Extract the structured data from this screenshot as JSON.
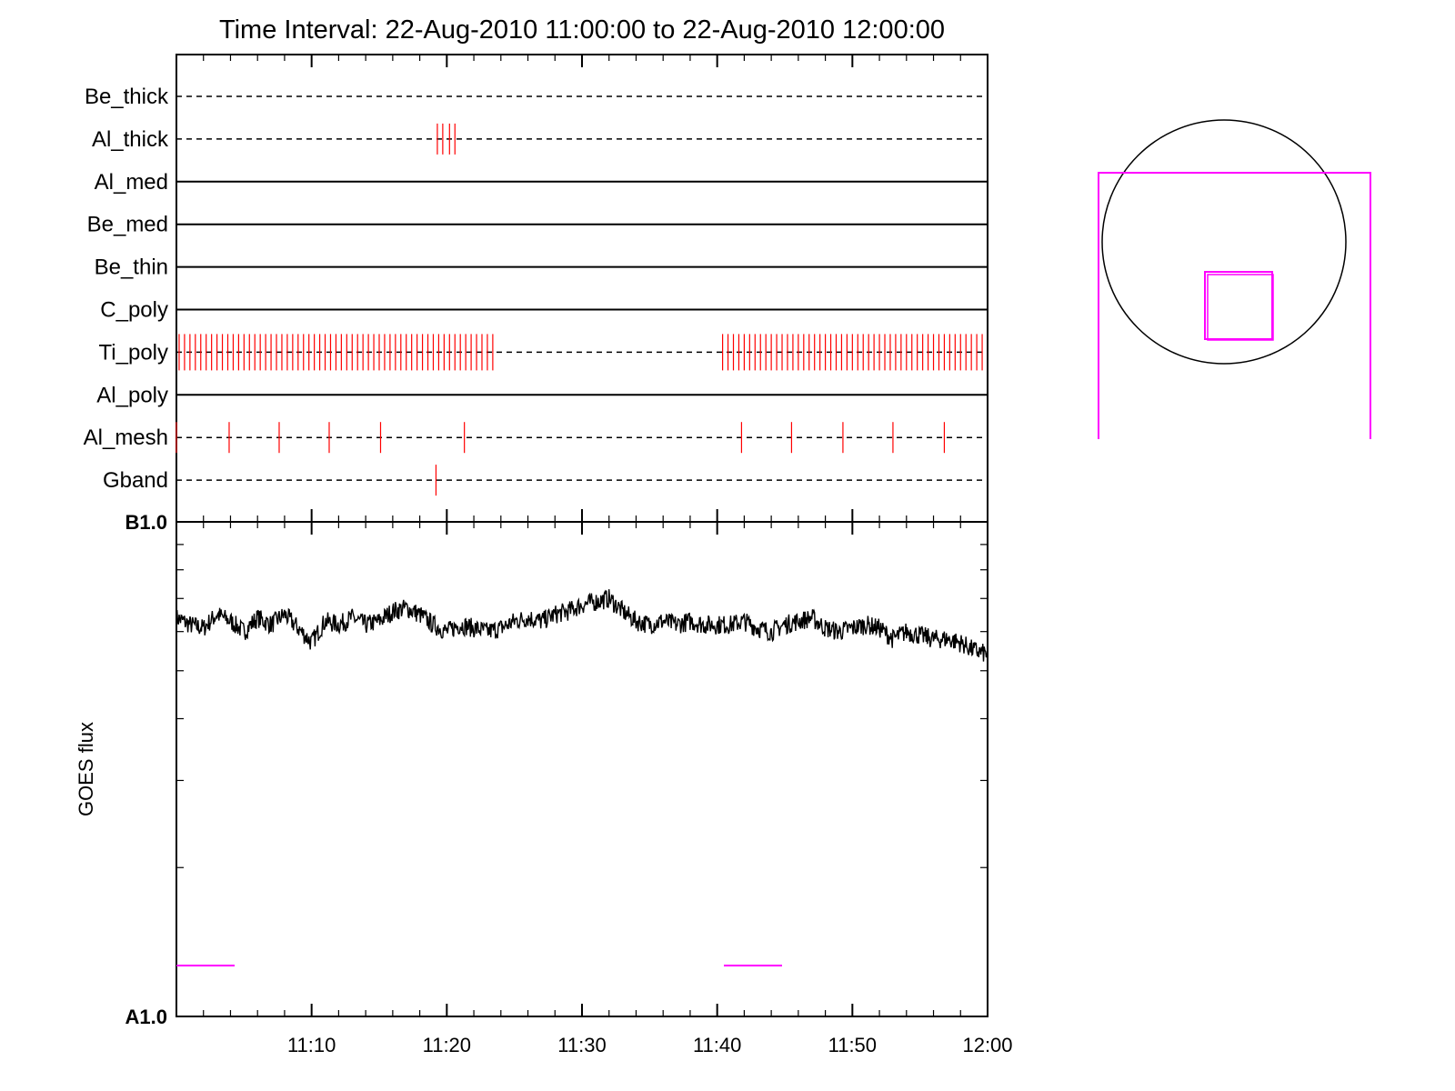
{
  "title": "Time Interval: 22-Aug-2010 11:00:00 to 22-Aug-2010 12:00:00",
  "colors": {
    "event_ticks": "#ff0000",
    "goes_curve": "#000000",
    "fov_overlay": "#ff00ff",
    "frame": "#000000"
  },
  "chart_data": [
    {
      "type": "scatter",
      "name": "filter-timeline",
      "x_unit": "minutes after 11:00",
      "xlim": [
        0,
        60
      ],
      "rows": [
        {
          "label": "Be_thick",
          "style": "dashed",
          "events": []
        },
        {
          "label": "Al_thick",
          "style": "dashed",
          "events": [
            19.3,
            19.7,
            20.2,
            20.6
          ]
        },
        {
          "label": "Al_med",
          "style": "solid",
          "events": []
        },
        {
          "label": "Be_med",
          "style": "solid",
          "events": []
        },
        {
          "label": "Be_thin",
          "style": "solid",
          "events": []
        },
        {
          "label": "C_poly",
          "style": "solid",
          "events": []
        },
        {
          "label": "Ti_poly",
          "style": "dashed",
          "events": [
            0.2,
            0.6,
            1.0,
            1.4,
            1.8,
            2.2,
            2.6,
            3.0,
            3.4,
            3.8,
            4.2,
            4.6,
            5.0,
            5.4,
            5.8,
            6.2,
            6.6,
            7.0,
            7.4,
            7.8,
            8.2,
            8.6,
            9.0,
            9.4,
            9.8,
            10.2,
            10.6,
            11.0,
            11.4,
            11.8,
            12.2,
            12.6,
            13.0,
            13.4,
            13.8,
            14.2,
            14.6,
            15.0,
            15.4,
            15.8,
            16.2,
            16.6,
            17.0,
            17.4,
            17.8,
            18.2,
            18.6,
            19.0,
            19.4,
            19.8,
            20.2,
            20.6,
            21.0,
            21.4,
            21.8,
            22.2,
            22.6,
            23.0,
            23.4,
            40.4,
            40.8,
            41.2,
            41.6,
            42.0,
            42.4,
            42.8,
            43.2,
            43.6,
            44.0,
            44.4,
            44.8,
            45.2,
            45.6,
            46.0,
            46.4,
            46.8,
            47.2,
            47.6,
            48.0,
            48.4,
            48.8,
            49.2,
            49.6,
            50.0,
            50.4,
            50.8,
            51.2,
            51.6,
            52.0,
            52.4,
            52.8,
            53.2,
            53.6,
            54.0,
            54.4,
            54.8,
            55.2,
            55.6,
            56.0,
            56.4,
            56.8,
            57.2,
            57.6,
            58.0,
            58.4,
            58.8,
            59.2,
            59.6
          ]
        },
        {
          "label": "Al_poly",
          "style": "solid",
          "events": []
        },
        {
          "label": "Al_mesh",
          "style": "dashed",
          "events": [
            0.0,
            3.9,
            7.6,
            11.3,
            15.1,
            21.3,
            41.8,
            45.5,
            49.3,
            53.0,
            56.8
          ]
        },
        {
          "label": "Gband",
          "style": "dashed",
          "events": [
            19.2
          ]
        }
      ]
    },
    {
      "type": "line",
      "name": "goes-flux",
      "ylabel": "GOES flux",
      "x_unit": "minutes after 11:00",
      "xlim": [
        0,
        60
      ],
      "ylim": [
        1e-08,
        1e-07
      ],
      "yscale": "log",
      "ytick_labels": [
        "A1.0",
        "B1.0"
      ],
      "xtick_labels": [
        "11:10",
        "11:20",
        "11:30",
        "11:40",
        "11:50",
        "12:00"
      ],
      "xtick_values": [
        10,
        20,
        30,
        40,
        50,
        60
      ],
      "x": [
        0,
        1,
        2,
        3,
        4,
        5,
        6,
        7,
        8,
        9,
        10,
        11,
        12,
        13,
        14,
        15,
        16,
        17,
        18,
        19,
        20,
        21,
        22,
        23,
        24,
        25,
        26,
        27,
        28,
        29,
        30,
        31,
        32,
        33,
        34,
        35,
        36,
        37,
        38,
        39,
        40,
        41,
        42,
        43,
        44,
        45,
        46,
        47,
        48,
        49,
        50,
        51,
        52,
        53,
        54,
        55,
        56,
        57,
        58,
        59,
        60
      ],
      "y": [
        6.4e-08,
        6.2e-08,
        6.1e-08,
        6.5e-08,
        6.3e-08,
        6e-08,
        6.4e-08,
        6.2e-08,
        6.5e-08,
        6.1e-08,
        5.7e-08,
        6.3e-08,
        6.2e-08,
        6.4e-08,
        6.2e-08,
        6.3e-08,
        6.6e-08,
        6.7e-08,
        6.5e-08,
        6.2e-08,
        6e-08,
        6.2e-08,
        6.1e-08,
        6e-08,
        6.1e-08,
        6.3e-08,
        6.4e-08,
        6.3e-08,
        6.5e-08,
        6.6e-08,
        6.8e-08,
        6.9e-08,
        7e-08,
        6.6e-08,
        6.3e-08,
        6.2e-08,
        6.3e-08,
        6.2e-08,
        6.3e-08,
        6.2e-08,
        6.2e-08,
        6.2e-08,
        6.3e-08,
        6.1e-08,
        6e-08,
        6.2e-08,
        6.3e-08,
        6.4e-08,
        6.1e-08,
        6e-08,
        6.1e-08,
        6.2e-08,
        6.1e-08,
        5.8e-08,
        6e-08,
        5.9e-08,
        5.8e-08,
        5.8e-08,
        5.7e-08,
        5.5e-08,
        5.4e-08
      ]
    }
  ],
  "pointing": {
    "circle": "sun-disk",
    "overlay_boxes": [
      "large-fov",
      "small-fov"
    ],
    "overlay_color": "#ff00ff"
  }
}
